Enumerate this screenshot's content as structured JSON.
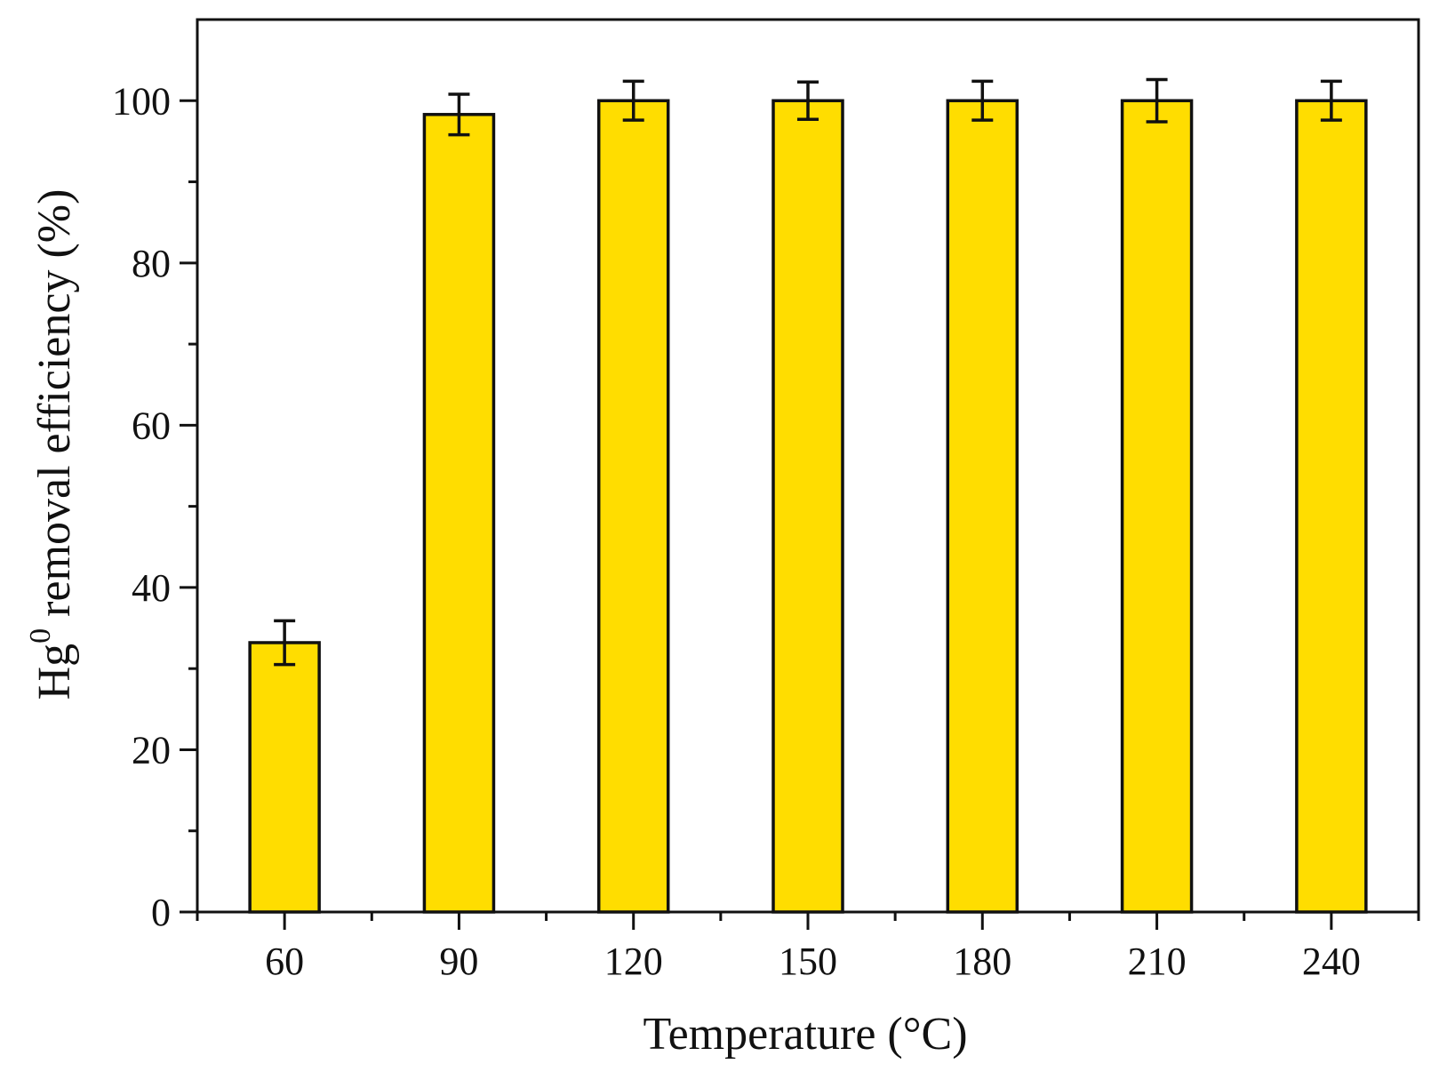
{
  "chart_data": {
    "type": "bar",
    "categories": [
      "60",
      "90",
      "120",
      "150",
      "180",
      "210",
      "240"
    ],
    "series": [
      {
        "values": [
          33.2,
          98.3,
          100,
          100,
          100,
          100,
          100
        ],
        "errors": [
          2.7,
          2.5,
          2.4,
          2.3,
          2.4,
          2.6,
          2.4
        ]
      }
    ],
    "xlabel": "Temperature (°C)",
    "ylabel": {
      "prefix": "Hg",
      "superscript": "0",
      "suffix": " removal efficiency (%)"
    },
    "ylim": [
      0,
      110
    ],
    "yticks": [
      "0",
      "20",
      "40",
      "60",
      "80",
      "100"
    ],
    "ytick_values": [
      0,
      20,
      40,
      60,
      80,
      100
    ],
    "grid": false,
    "legend": "none",
    "colors": {
      "bar_fill": "#FFDD00",
      "bar_stroke": "#111111",
      "axis": "#111111"
    }
  }
}
